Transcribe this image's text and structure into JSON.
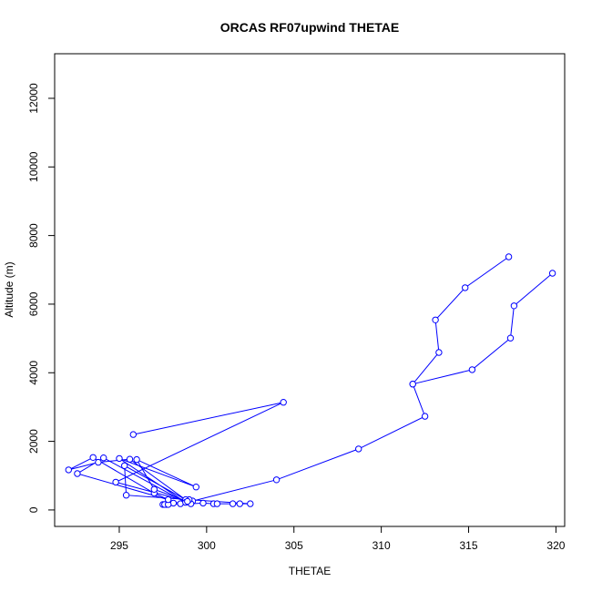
{
  "chart_data": {
    "type": "line",
    "title": "ORCAS RF07upwind THETAE",
    "xlabel": "THETAE",
    "ylabel": "Altitude (m)",
    "xlim": [
      291.3,
      320.5
    ],
    "ylim": [
      -480,
      13300
    ],
    "xticks": [
      295,
      300,
      305,
      310,
      315,
      320
    ],
    "xtick_labels": [
      "295",
      "300",
      "305",
      "310",
      "315",
      "320"
    ],
    "yticks": [
      0,
      2000,
      4000,
      6000,
      8000,
      10000,
      12000
    ],
    "ytick_labels": [
      "0",
      "2000",
      "4000",
      "6000",
      "8000",
      "10000",
      "12000"
    ],
    "grid": false,
    "series": [
      {
        "color": "#0000ff",
        "marker": "open-circle",
        "x": [
          317.3,
          314.8,
          313.1,
          313.3,
          311.8,
          312.5,
          308.7,
          304.0,
          299.2,
          298.1,
          297.7,
          297.5,
          297.6,
          297.8,
          298.5,
          299.1,
          299.8,
          300.4,
          300.6,
          301.5,
          301.9,
          302.5,
          299.0,
          295.4,
          295.3,
          298.8,
          295.6,
          293.8,
          292.1,
          293.5,
          297.0,
          297.8,
          292.6,
          294.1,
          298.8,
          295.0,
          299.4,
          296.0,
          297.0,
          298.9,
          294.8,
          304.4,
          295.8
        ],
        "y": [
          7380,
          6480,
          5540,
          4590,
          3670,
          2730,
          1780,
          880,
          260,
          200,
          160,
          160,
          160,
          160,
          180,
          180,
          200,
          180,
          180,
          180,
          180,
          180,
          300,
          430,
          1290,
          300,
          1480,
          1390,
          1170,
          1530,
          490,
          300,
          1060,
          1520,
          220,
          1500,
          670,
          1470,
          600,
          250,
          810,
          3140,
          2200
        ]
      },
      {
        "color": "#0000ff",
        "marker": "open-circle",
        "x": [
          319.8,
          317.6,
          317.4,
          315.2,
          311.8
        ],
        "y": [
          6900,
          5950,
          5010,
          4090,
          3670
        ]
      }
    ]
  }
}
